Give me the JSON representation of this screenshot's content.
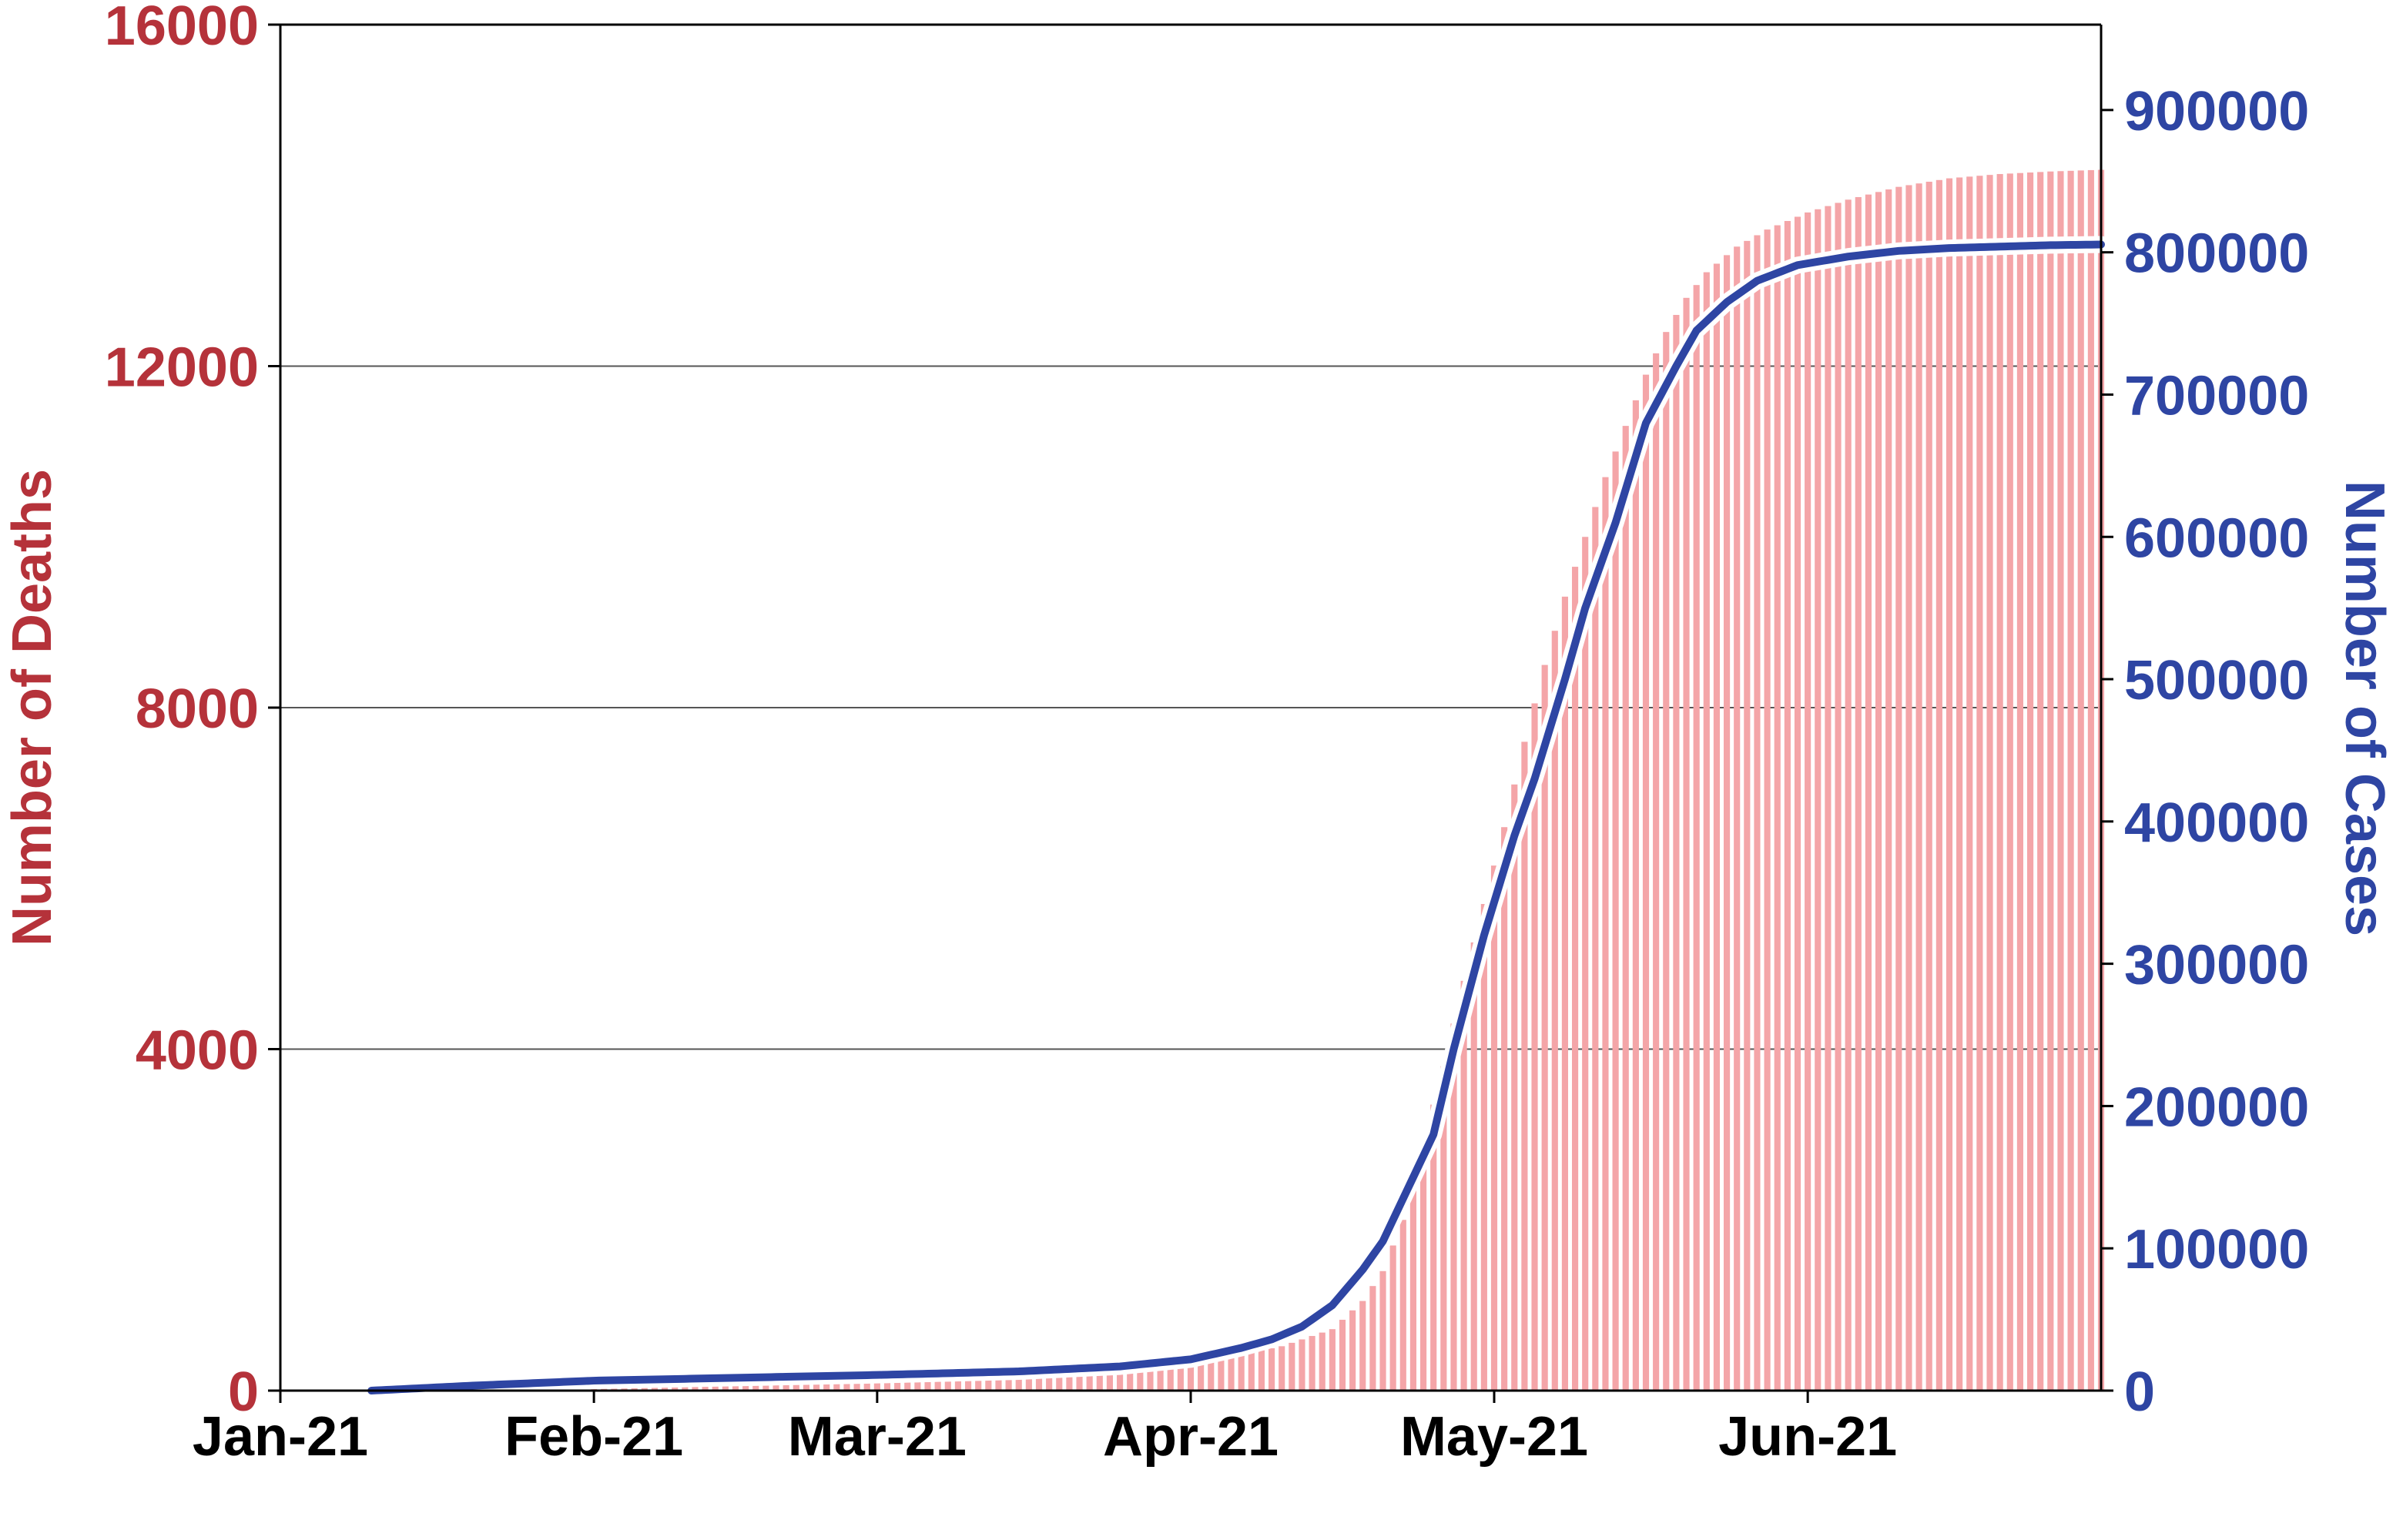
{
  "colors": {
    "deaths": "#b5323a",
    "deaths_bar": "#f4a5a8",
    "cases": "#2e45a3",
    "axis": "#000000",
    "grid": "#555555"
  },
  "chart_data": {
    "type": "bar+line",
    "title": "",
    "x_axis": {
      "type": "date",
      "range": [
        "2021-01-01",
        "2021-06-30"
      ],
      "ticks": [
        {
          "date": "2021-01-01",
          "label": "Jan-21"
        },
        {
          "date": "2021-02-01",
          "label": "Feb-21"
        },
        {
          "date": "2021-03-01",
          "label": "Mar-21"
        },
        {
          "date": "2021-04-01",
          "label": "Apr-21"
        },
        {
          "date": "2021-05-01",
          "label": "May-21"
        },
        {
          "date": "2021-06-01",
          "label": "Jun-21"
        }
      ]
    },
    "y_left": {
      "label": "Number of Deaths",
      "range": [
        0,
        16000
      ],
      "ticks": [
        "0",
        "4000",
        "8000",
        "12000",
        "16000"
      ],
      "grid": true
    },
    "y_right": {
      "label": "Number of Cases",
      "range": [
        0,
        960000
      ],
      "ticks": [
        "0",
        "100000",
        "200000",
        "300000",
        "400000",
        "500000",
        "600000",
        "700000",
        "800000",
        "900000"
      ]
    },
    "series": [
      {
        "type": "bar",
        "axis": "left",
        "bar_period": "daily",
        "bar_start": "2021-01-10",
        "points": [
          [
            "2021-01-10",
            0
          ],
          [
            "2021-01-20",
            60
          ],
          [
            "2021-02-01",
            110
          ],
          [
            "2021-02-15",
            150
          ],
          [
            "2021-03-01",
            190
          ],
          [
            "2021-03-15",
            220
          ],
          [
            "2021-03-25",
            270
          ],
          [
            "2021-04-01",
            330
          ],
          [
            "2021-04-05",
            400
          ],
          [
            "2021-04-10",
            520
          ],
          [
            "2021-04-15",
            720
          ],
          [
            "2021-04-18",
            1050
          ],
          [
            "2021-04-20",
            1400
          ],
          [
            "2021-04-22",
            2000
          ],
          [
            "2021-04-24",
            2900
          ],
          [
            "2021-04-26",
            3800
          ],
          [
            "2021-04-28",
            4800
          ],
          [
            "2021-04-30",
            5700
          ],
          [
            "2021-05-02",
            6600
          ],
          [
            "2021-05-04",
            7600
          ],
          [
            "2021-05-06",
            8500
          ],
          [
            "2021-05-08",
            9300
          ],
          [
            "2021-05-10",
            10000
          ],
          [
            "2021-05-12",
            10700
          ],
          [
            "2021-05-14",
            11300
          ],
          [
            "2021-05-16",
            11900
          ],
          [
            "2021-05-18",
            12400
          ],
          [
            "2021-05-20",
            12800
          ],
          [
            "2021-05-22",
            13100
          ],
          [
            "2021-05-25",
            13400
          ],
          [
            "2021-05-28",
            13600
          ],
          [
            "2021-06-01",
            13800
          ],
          [
            "2021-06-05",
            13950
          ],
          [
            "2021-06-10",
            14100
          ],
          [
            "2021-06-15",
            14200
          ],
          [
            "2021-06-20",
            14250
          ],
          [
            "2021-06-25",
            14280
          ],
          [
            "2021-06-30",
            14300
          ]
        ]
      },
      {
        "type": "line",
        "axis": "right",
        "points": [
          [
            "2021-01-10",
            0
          ],
          [
            "2021-01-20",
            3500
          ],
          [
            "2021-02-01",
            7000
          ],
          [
            "2021-02-15",
            9000
          ],
          [
            "2021-03-01",
            11000
          ],
          [
            "2021-03-15",
            13500
          ],
          [
            "2021-03-25",
            17000
          ],
          [
            "2021-04-01",
            22000
          ],
          [
            "2021-04-06",
            30000
          ],
          [
            "2021-04-09",
            36000
          ],
          [
            "2021-04-12",
            45000
          ],
          [
            "2021-04-15",
            60000
          ],
          [
            "2021-04-18",
            85000
          ],
          [
            "2021-04-20",
            105000
          ],
          [
            "2021-04-23",
            150000
          ],
          [
            "2021-04-25",
            180000
          ],
          [
            "2021-04-27",
            240000
          ],
          [
            "2021-04-30",
            320000
          ],
          [
            "2021-05-03",
            390000
          ],
          [
            "2021-05-05",
            430000
          ],
          [
            "2021-05-08",
            500000
          ],
          [
            "2021-05-10",
            550000
          ],
          [
            "2021-05-13",
            610000
          ],
          [
            "2021-05-16",
            680000
          ],
          [
            "2021-05-19",
            720000
          ],
          [
            "2021-05-21",
            745000
          ],
          [
            "2021-05-24",
            765000
          ],
          [
            "2021-05-27",
            780000
          ],
          [
            "2021-05-31",
            791000
          ],
          [
            "2021-06-05",
            797000
          ],
          [
            "2021-06-10",
            801000
          ],
          [
            "2021-06-15",
            803000
          ],
          [
            "2021-06-20",
            804000
          ],
          [
            "2021-06-25",
            805000
          ],
          [
            "2021-06-30",
            805500
          ]
        ]
      }
    ]
  }
}
